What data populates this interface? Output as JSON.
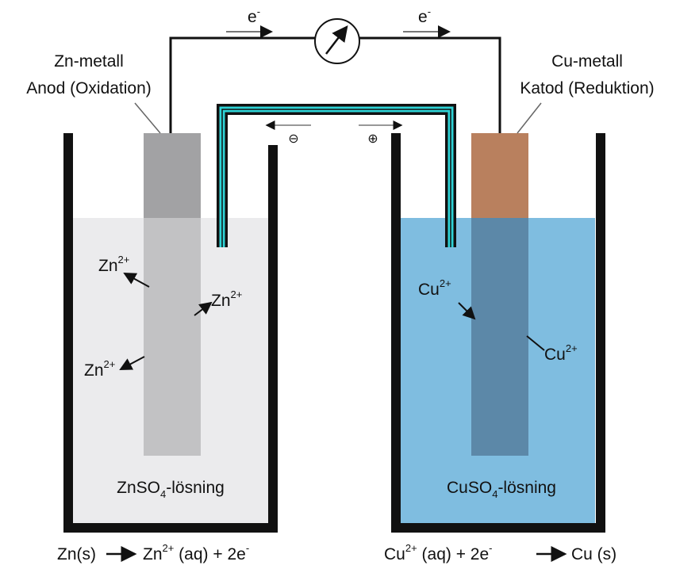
{
  "electron_labels": [
    {
      "symbol": "e",
      "charge": "-"
    },
    {
      "symbol": "e",
      "charge": "-"
    }
  ],
  "anode": {
    "label": "Zn-metall",
    "role": "Anod (Oxidation)"
  },
  "cathode": {
    "label": "Cu-metall",
    "role": "Katod (Reduktion)"
  },
  "salt_bridge": {
    "left_sign": "⊖",
    "right_sign": "⊕"
  },
  "left_ions": [
    {
      "symbol": "Zn",
      "charge": "2+"
    },
    {
      "symbol": "Zn",
      "charge": "2+"
    },
    {
      "symbol": "Zn",
      "charge": "2+"
    }
  ],
  "right_ions": [
    {
      "symbol": "Cu",
      "charge": "2+"
    },
    {
      "symbol": "Cu",
      "charge": "2+"
    }
  ],
  "left_solution": {
    "formula": "ZnSO",
    "subscript": "4",
    "suffix": "-lösning"
  },
  "right_solution": {
    "formula": "CuSO",
    "subscript": "4",
    "suffix": "-lösning"
  },
  "left_reaction": {
    "reactant": "Zn(s)",
    "product": "Zn",
    "product_charge": "2+",
    "rest": " (aq) + 2e",
    "electron_charge": "-"
  },
  "right_reaction": {
    "reactant": "Cu",
    "reactant_charge": "2+",
    "rest": " (aq) + 2e",
    "electron_charge": "-",
    "product": "Cu (s)"
  }
}
